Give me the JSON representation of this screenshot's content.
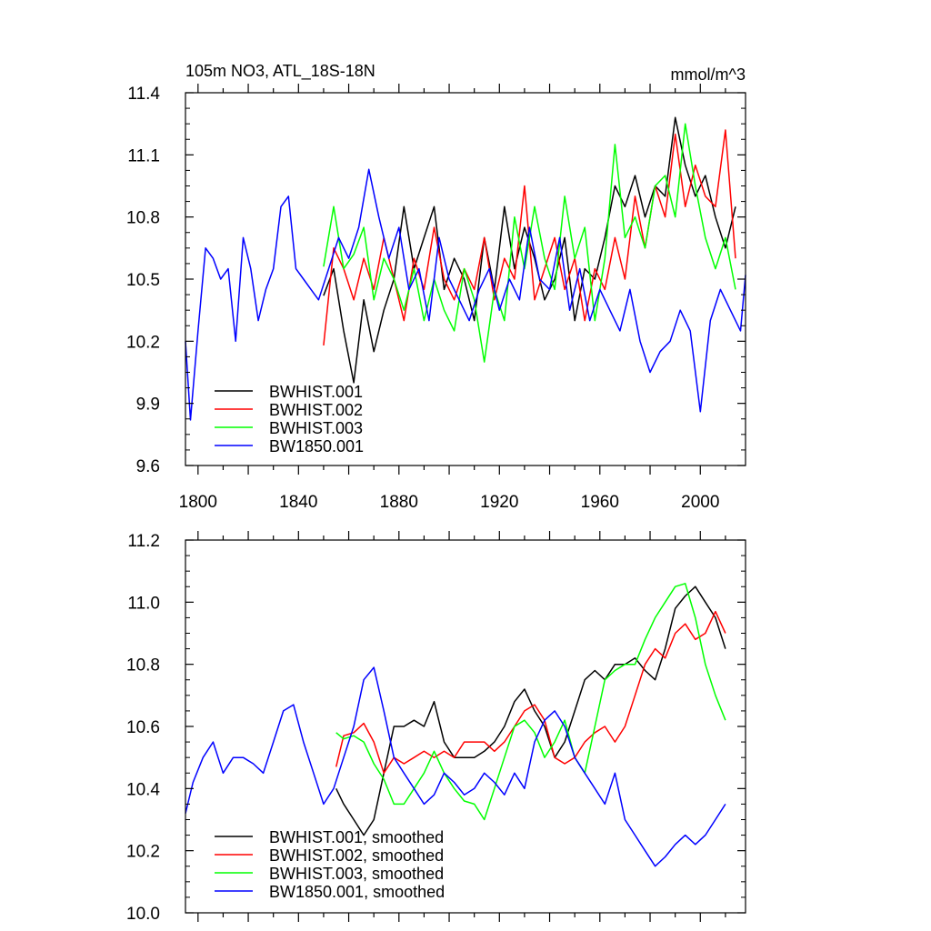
{
  "chart_data": [
    {
      "type": "line",
      "title": "105m NO3, ATL_18S-18N",
      "units": "mmol/m^3",
      "xlim": [
        1795,
        2018
      ],
      "ylim": [
        9.6,
        11.4
      ],
      "yticks": [
        "9.6",
        "9.9",
        "10.2",
        "10.5",
        "10.8",
        "11.1",
        "11.4"
      ],
      "xticks": [
        "1800",
        "1840",
        "1880",
        "1920",
        "1960",
        "2000"
      ],
      "legend_position": "bottom-left",
      "series": [
        {
          "name": "BWHIST.001",
          "color": "#000000",
          "x": [
            1850,
            1854,
            1858,
            1862,
            1866,
            1870,
            1874,
            1878,
            1882,
            1886,
            1890,
            1894,
            1898,
            1902,
            1906,
            1910,
            1914,
            1918,
            1922,
            1926,
            1930,
            1934,
            1938,
            1942,
            1946,
            1950,
            1954,
            1958,
            1962,
            1966,
            1970,
            1974,
            1978,
            1982,
            1986,
            1990,
            1994,
            1998,
            2002,
            2006,
            2010,
            2014
          ],
          "y": [
            10.42,
            10.55,
            10.25,
            10.0,
            10.4,
            10.15,
            10.35,
            10.5,
            10.85,
            10.55,
            10.7,
            10.85,
            10.45,
            10.6,
            10.5,
            10.3,
            10.7,
            10.45,
            10.85,
            10.55,
            10.75,
            10.6,
            10.4,
            10.5,
            10.7,
            10.3,
            10.55,
            10.5,
            10.7,
            10.95,
            10.85,
            11.0,
            10.8,
            10.95,
            10.9,
            11.28,
            11.05,
            10.9,
            11.0,
            10.8,
            10.65,
            10.85
          ]
        },
        {
          "name": "BWHIST.002",
          "color": "#ff0000",
          "x": [
            1850,
            1854,
            1858,
            1862,
            1866,
            1870,
            1874,
            1878,
            1882,
            1886,
            1890,
            1894,
            1898,
            1902,
            1906,
            1910,
            1914,
            1918,
            1922,
            1926,
            1930,
            1934,
            1938,
            1942,
            1946,
            1950,
            1954,
            1958,
            1962,
            1966,
            1970,
            1974,
            1978,
            1982,
            1986,
            1990,
            1994,
            1998,
            2002,
            2006,
            2010,
            2014
          ],
          "y": [
            10.18,
            10.65,
            10.55,
            10.4,
            10.6,
            10.45,
            10.7,
            10.5,
            10.3,
            10.6,
            10.45,
            10.75,
            10.5,
            10.4,
            10.55,
            10.45,
            10.7,
            10.4,
            10.6,
            10.5,
            10.95,
            10.4,
            10.55,
            10.7,
            10.45,
            10.6,
            10.3,
            10.55,
            10.45,
            10.7,
            10.5,
            10.9,
            10.65,
            10.95,
            10.8,
            11.2,
            10.85,
            11.05,
            10.9,
            10.85,
            11.22,
            10.6
          ]
        },
        {
          "name": "BWHIST.003",
          "color": "#00ff00",
          "x": [
            1850,
            1854,
            1858,
            1862,
            1866,
            1870,
            1874,
            1878,
            1882,
            1886,
            1890,
            1894,
            1898,
            1902,
            1906,
            1910,
            1914,
            1918,
            1922,
            1926,
            1930,
            1934,
            1938,
            1942,
            1946,
            1950,
            1954,
            1958,
            1962,
            1966,
            1970,
            1974,
            1978,
            1982,
            1986,
            1990,
            1994,
            1998,
            2002,
            2006,
            2010,
            2014
          ],
          "y": [
            10.56,
            10.85,
            10.55,
            10.62,
            10.75,
            10.4,
            10.6,
            10.5,
            10.35,
            10.55,
            10.3,
            10.5,
            10.35,
            10.25,
            10.55,
            10.4,
            10.1,
            10.45,
            10.3,
            10.8,
            10.55,
            10.85,
            10.6,
            10.45,
            10.9,
            10.6,
            10.75,
            10.3,
            10.6,
            11.15,
            10.7,
            10.8,
            10.65,
            10.95,
            11.0,
            10.8,
            11.25,
            10.95,
            10.7,
            10.55,
            10.7,
            10.45
          ]
        },
        {
          "name": "BW1850.001",
          "color": "#0000ff",
          "x": [
            1795,
            1797,
            1800,
            1803,
            1806,
            1809,
            1812,
            1815,
            1818,
            1821,
            1824,
            1827,
            1830,
            1833,
            1836,
            1839,
            1842,
            1845,
            1848,
            1852,
            1856,
            1860,
            1864,
            1868,
            1872,
            1876,
            1880,
            1884,
            1888,
            1892,
            1896,
            1900,
            1904,
            1908,
            1912,
            1916,
            1920,
            1924,
            1928,
            1932,
            1936,
            1940,
            1944,
            1948,
            1952,
            1956,
            1960,
            1964,
            1968,
            1972,
            1976,
            1980,
            1984,
            1988,
            1992,
            1996,
            2000,
            2004,
            2008,
            2012,
            2016,
            2018
          ],
          "y": [
            10.2,
            9.82,
            10.25,
            10.65,
            10.6,
            10.5,
            10.55,
            10.2,
            10.7,
            10.55,
            10.3,
            10.45,
            10.55,
            10.85,
            10.9,
            10.55,
            10.5,
            10.45,
            10.4,
            10.55,
            10.7,
            10.6,
            10.75,
            11.03,
            10.8,
            10.6,
            10.75,
            10.45,
            10.55,
            10.3,
            10.7,
            10.5,
            10.4,
            10.3,
            10.45,
            10.55,
            10.35,
            10.5,
            10.4,
            10.75,
            10.5,
            10.45,
            10.7,
            10.35,
            10.55,
            10.3,
            10.45,
            10.35,
            10.25,
            10.45,
            10.2,
            10.05,
            10.15,
            10.2,
            10.35,
            10.25,
            9.86,
            10.3,
            10.45,
            10.35,
            10.25,
            10.52
          ]
        }
      ]
    },
    {
      "type": "line",
      "xlim": [
        1795,
        2018
      ],
      "ylim": [
        10.0,
        11.2
      ],
      "yticks": [
        "10.0",
        "10.2",
        "10.4",
        "10.6",
        "10.8",
        "11.0",
        "11.2"
      ],
      "legend_position": "bottom-left",
      "series": [
        {
          "name": "BWHIST.001, smoothed",
          "color": "#000000",
          "x": [
            1855,
            1858,
            1862,
            1866,
            1870,
            1874,
            1878,
            1882,
            1886,
            1890,
            1894,
            1898,
            1902,
            1906,
            1910,
            1914,
            1918,
            1922,
            1926,
            1930,
            1934,
            1938,
            1942,
            1946,
            1950,
            1954,
            1958,
            1962,
            1966,
            1970,
            1974,
            1978,
            1982,
            1986,
            1990,
            1994,
            1998,
            2002,
            2006,
            2010
          ],
          "y": [
            10.4,
            10.35,
            10.3,
            10.25,
            10.3,
            10.45,
            10.6,
            10.6,
            10.62,
            10.6,
            10.68,
            10.55,
            10.5,
            10.5,
            10.5,
            10.52,
            10.55,
            10.6,
            10.68,
            10.72,
            10.65,
            10.6,
            10.5,
            10.55,
            10.65,
            10.75,
            10.78,
            10.75,
            10.8,
            10.8,
            10.82,
            10.78,
            10.75,
            10.85,
            10.98,
            11.02,
            11.05,
            11.0,
            10.95,
            10.85
          ]
        },
        {
          "name": "BWHIST.002, smoothed",
          "color": "#ff0000",
          "x": [
            1855,
            1858,
            1862,
            1866,
            1870,
            1874,
            1878,
            1882,
            1886,
            1890,
            1894,
            1898,
            1902,
            1906,
            1910,
            1914,
            1918,
            1922,
            1926,
            1930,
            1934,
            1938,
            1942,
            1946,
            1950,
            1954,
            1958,
            1962,
            1966,
            1970,
            1974,
            1978,
            1982,
            1986,
            1990,
            1994,
            1998,
            2002,
            2006,
            2010
          ],
          "y": [
            10.47,
            10.57,
            10.58,
            10.61,
            10.55,
            10.45,
            10.5,
            10.48,
            10.5,
            10.52,
            10.5,
            10.52,
            10.5,
            10.55,
            10.55,
            10.55,
            10.52,
            10.55,
            10.6,
            10.65,
            10.67,
            10.62,
            10.5,
            10.48,
            10.5,
            10.55,
            10.58,
            10.6,
            10.55,
            10.6,
            10.7,
            10.8,
            10.85,
            10.82,
            10.9,
            10.93,
            10.88,
            10.9,
            10.97,
            10.9
          ]
        },
        {
          "name": "BWHIST.003, smoothed",
          "color": "#00ff00",
          "x": [
            1855,
            1858,
            1862,
            1866,
            1870,
            1874,
            1878,
            1882,
            1886,
            1890,
            1894,
            1898,
            1902,
            1906,
            1910,
            1914,
            1918,
            1922,
            1926,
            1930,
            1934,
            1938,
            1942,
            1946,
            1950,
            1954,
            1958,
            1962,
            1966,
            1970,
            1974,
            1978,
            1982,
            1986,
            1990,
            1994,
            1998,
            2002,
            2006,
            2010
          ],
          "y": [
            10.58,
            10.56,
            10.57,
            10.55,
            10.48,
            10.43,
            10.35,
            10.35,
            10.4,
            10.45,
            10.52,
            10.45,
            10.4,
            10.36,
            10.35,
            10.3,
            10.4,
            10.5,
            10.6,
            10.62,
            10.58,
            10.5,
            10.55,
            10.62,
            10.5,
            10.45,
            10.6,
            10.75,
            10.78,
            10.8,
            10.8,
            10.88,
            10.95,
            11.0,
            11.05,
            11.06,
            10.95,
            10.8,
            10.7,
            10.62
          ]
        },
        {
          "name": "BW1850.001, smoothed",
          "color": "#0000ff",
          "x": [
            1795,
            1798,
            1802,
            1806,
            1810,
            1814,
            1818,
            1822,
            1826,
            1830,
            1834,
            1838,
            1842,
            1846,
            1850,
            1854,
            1858,
            1862,
            1866,
            1870,
            1874,
            1878,
            1882,
            1886,
            1890,
            1894,
            1898,
            1902,
            1906,
            1910,
            1914,
            1918,
            1922,
            1926,
            1930,
            1934,
            1938,
            1942,
            1946,
            1950,
            1954,
            1958,
            1962,
            1966,
            1970,
            1974,
            1978,
            1982,
            1986,
            1990,
            1994,
            1998,
            2002,
            2006,
            2010
          ],
          "y": [
            10.32,
            10.42,
            10.5,
            10.55,
            10.45,
            10.5,
            10.5,
            10.48,
            10.45,
            10.55,
            10.65,
            10.67,
            10.55,
            10.45,
            10.35,
            10.4,
            10.5,
            10.6,
            10.75,
            10.79,
            10.65,
            10.5,
            10.45,
            10.4,
            10.35,
            10.38,
            10.45,
            10.42,
            10.38,
            10.4,
            10.45,
            10.42,
            10.38,
            10.45,
            10.4,
            10.55,
            10.62,
            10.65,
            10.6,
            10.5,
            10.45,
            10.4,
            10.35,
            10.45,
            10.3,
            10.25,
            10.2,
            10.15,
            10.18,
            10.22,
            10.25,
            10.22,
            10.25,
            10.3,
            10.35
          ]
        }
      ]
    }
  ]
}
